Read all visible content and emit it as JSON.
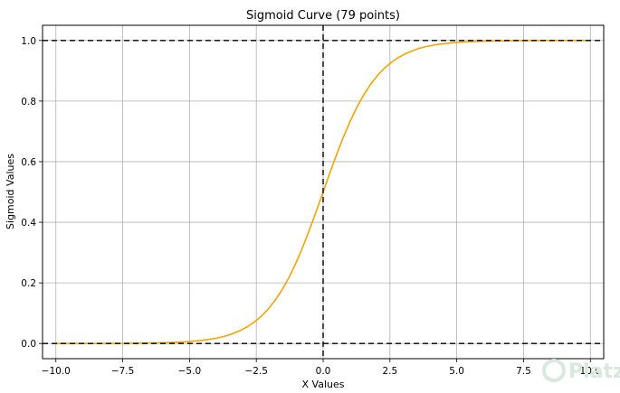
{
  "chart_data": {
    "type": "line",
    "title": "Sigmoid Curve (79 points)",
    "xlabel": "X Values",
    "ylabel": "Sigmoid Values",
    "xlim": [
      -10.5,
      10.5
    ],
    "ylim": [
      -0.05,
      1.05
    ],
    "xticks": [
      -10.0,
      -7.5,
      -5.0,
      -2.5,
      0.0,
      2.5,
      5.0,
      7.5,
      10.0
    ],
    "xtick_labels": [
      "−10.0",
      "−7.5",
      "−5.0",
      "−2.5",
      "0.0",
      "2.5",
      "5.0",
      "7.5",
      "10.0"
    ],
    "yticks": [
      0.0,
      0.2,
      0.4,
      0.6,
      0.8,
      1.0
    ],
    "ytick_labels": [
      "0.0",
      "0.2",
      "0.4",
      "0.6",
      "0.8",
      "1.0"
    ],
    "grid": true,
    "series": [
      {
        "color": "#f0a500",
        "x": [
          -10.0,
          -9.744,
          -9.487,
          -9.231,
          -8.974,
          -8.718,
          -8.462,
          -8.205,
          -7.949,
          -7.692,
          -7.436,
          -7.179,
          -6.923,
          -6.667,
          -6.41,
          -6.154,
          -5.897,
          -5.641,
          -5.385,
          -5.128,
          -4.872,
          -4.615,
          -4.359,
          -4.103,
          -3.846,
          -3.59,
          -3.333,
          -3.077,
          -2.821,
          -2.564,
          -2.308,
          -2.051,
          -1.795,
          -1.538,
          -1.282,
          -1.026,
          -0.769,
          -0.513,
          -0.256,
          0.0,
          0.256,
          0.513,
          0.769,
          1.026,
          1.282,
          1.538,
          1.795,
          2.051,
          2.308,
          2.564,
          2.821,
          3.077,
          3.333,
          3.59,
          3.846,
          4.103,
          4.359,
          4.615,
          4.872,
          5.128,
          5.385,
          5.641,
          5.897,
          6.154,
          6.41,
          6.667,
          6.923,
          7.179,
          7.436,
          7.692,
          7.949,
          8.205,
          8.462,
          8.718,
          8.974,
          9.231,
          9.487,
          9.744,
          10.0
        ],
        "y": [
          4.54e-05,
          5.86e-05,
          7.58e-05,
          9.79e-05,
          0.0001265,
          0.0001635,
          0.0002113,
          0.000273,
          0.0003527,
          0.0004557,
          0.0005888,
          0.0007606,
          0.0009823,
          0.001268,
          0.001637,
          0.002113,
          0.002727,
          0.003518,
          0.004536,
          0.005846,
          0.007531,
          0.009692,
          0.012456,
          0.015977,
          0.020438,
          0.026051,
          0.034445,
          0.043998,
          0.056197,
          0.071508,
          0.09049,
          0.113898,
          0.142446,
          0.176813,
          0.217167,
          0.263904,
          0.316701,
          0.37449,
          0.436379,
          0.5,
          0.563621,
          0.62551,
          0.683299,
          0.736096,
          0.782833,
          0.823187,
          0.857554,
          0.886102,
          0.90951,
          0.928492,
          0.943803,
          0.956002,
          0.965555,
          0.973949,
          0.979562,
          0.984023,
          0.987544,
          0.990308,
          0.992469,
          0.994154,
          0.995464,
          0.996482,
          0.997273,
          0.997887,
          0.998363,
          0.998732,
          0.999018,
          0.999239,
          0.999411,
          0.999544,
          0.999647,
          0.999727,
          0.999789,
          0.999837,
          0.999874,
          0.999902,
          0.999924,
          0.999941,
          0.999955
        ]
      }
    ],
    "reference_lines": {
      "horizontal": [
        0.0,
        1.0
      ],
      "vertical": [
        0.0
      ],
      "style": "dashed",
      "color": "#000000"
    }
  },
  "watermark": {
    "text": "Platzi"
  }
}
